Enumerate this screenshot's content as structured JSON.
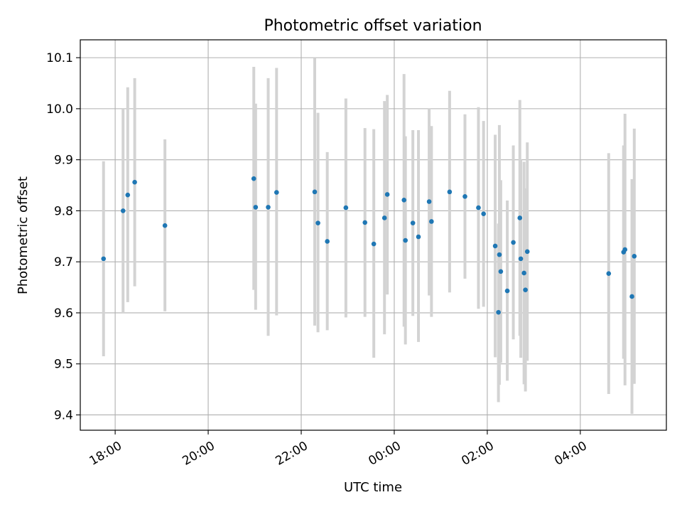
{
  "chart_data": {
    "type": "scatter",
    "title": "Photometric offset variation",
    "xlabel": "UTC time",
    "ylabel": "Photometric offset",
    "x_unit": "hours since 00:00 UTC",
    "xlim": [
      -6.75,
      5.85
    ],
    "ylim": [
      9.37,
      10.135
    ],
    "grid": true,
    "x_ticks": [
      {
        "value": -6,
        "label": "18:00"
      },
      {
        "value": -4,
        "label": "20:00"
      },
      {
        "value": -2,
        "label": "22:00"
      },
      {
        "value": 0,
        "label": "00:00"
      },
      {
        "value": 2,
        "label": "02:00"
      },
      {
        "value": 4,
        "label": "04:00"
      }
    ],
    "y_ticks": [
      {
        "value": 9.4,
        "label": "9.4"
      },
      {
        "value": 9.5,
        "label": "9.5"
      },
      {
        "value": 9.6,
        "label": "9.6"
      },
      {
        "value": 9.7,
        "label": "9.7"
      },
      {
        "value": 9.8,
        "label": "9.8"
      },
      {
        "value": 9.9,
        "label": "9.9"
      },
      {
        "value": 10.0,
        "label": "10.0"
      },
      {
        "value": 10.1,
        "label": "10.1"
      }
    ],
    "colors": {
      "point": "#1f77b4",
      "errorbar": "#d3d3d3",
      "grid": "#b0b0b0"
    },
    "points": [
      {
        "x": -6.25,
        "y": 9.706,
        "lo": 9.515,
        "hi": 9.897
      },
      {
        "x": -5.83,
        "y": 9.8,
        "lo": 9.6,
        "hi": 10.0
      },
      {
        "x": -5.73,
        "y": 9.831,
        "lo": 9.621,
        "hi": 10.042
      },
      {
        "x": -5.58,
        "y": 9.856,
        "lo": 9.652,
        "hi": 10.06
      },
      {
        "x": -4.93,
        "y": 9.771,
        "lo": 9.603,
        "hi": 9.94
      },
      {
        "x": -3.02,
        "y": 9.863,
        "lo": 9.645,
        "hi": 10.082
      },
      {
        "x": -2.98,
        "y": 9.807,
        "lo": 9.606,
        "hi": 10.01
      },
      {
        "x": -2.71,
        "y": 9.807,
        "lo": 9.555,
        "hi": 10.06
      },
      {
        "x": -2.53,
        "y": 9.836,
        "lo": 9.595,
        "hi": 10.08
      },
      {
        "x": -1.71,
        "y": 9.837,
        "lo": 9.575,
        "hi": 10.1
      },
      {
        "x": -1.64,
        "y": 9.776,
        "lo": 9.562,
        "hi": 9.992
      },
      {
        "x": -1.44,
        "y": 9.74,
        "lo": 9.566,
        "hi": 9.915
      },
      {
        "x": -1.04,
        "y": 9.806,
        "lo": 9.591,
        "hi": 10.02
      },
      {
        "x": -0.63,
        "y": 9.777,
        "lo": 9.592,
        "hi": 9.962
      },
      {
        "x": -0.44,
        "y": 9.735,
        "lo": 9.512,
        "hi": 9.96
      },
      {
        "x": -0.21,
        "y": 9.786,
        "lo": 9.558,
        "hi": 10.015
      },
      {
        "x": -0.15,
        "y": 9.832,
        "lo": 9.636,
        "hi": 10.027
      },
      {
        "x": 0.21,
        "y": 9.821,
        "lo": 9.573,
        "hi": 10.068
      },
      {
        "x": 0.24,
        "y": 9.742,
        "lo": 9.538,
        "hi": 9.946
      },
      {
        "x": 0.4,
        "y": 9.776,
        "lo": 9.594,
        "hi": 9.958
      },
      {
        "x": 0.52,
        "y": 9.749,
        "lo": 9.543,
        "hi": 9.958
      },
      {
        "x": 0.75,
        "y": 9.818,
        "lo": 9.634,
        "hi": 10.001
      },
      {
        "x": 0.8,
        "y": 9.779,
        "lo": 9.592,
        "hi": 9.966
      },
      {
        "x": 1.19,
        "y": 9.837,
        "lo": 9.64,
        "hi": 10.035
      },
      {
        "x": 1.52,
        "y": 9.828,
        "lo": 9.667,
        "hi": 9.989
      },
      {
        "x": 1.81,
        "y": 9.806,
        "lo": 9.608,
        "hi": 10.003
      },
      {
        "x": 1.92,
        "y": 9.794,
        "lo": 9.612,
        "hi": 9.976
      },
      {
        "x": 2.17,
        "y": 9.731,
        "lo": 9.513,
        "hi": 9.949
      },
      {
        "x": 2.24,
        "y": 9.601,
        "lo": 9.425,
        "hi": 9.775
      },
      {
        "x": 2.26,
        "y": 9.714,
        "lo": 9.459,
        "hi": 9.968
      },
      {
        "x": 2.29,
        "y": 9.681,
        "lo": 9.502,
        "hi": 9.86
      },
      {
        "x": 2.43,
        "y": 9.643,
        "lo": 9.467,
        "hi": 9.82
      },
      {
        "x": 2.56,
        "y": 9.738,
        "lo": 9.548,
        "hi": 9.928
      },
      {
        "x": 2.7,
        "y": 9.786,
        "lo": 9.555,
        "hi": 10.017
      },
      {
        "x": 2.72,
        "y": 9.706,
        "lo": 9.512,
        "hi": 9.9
      },
      {
        "x": 2.79,
        "y": 9.678,
        "lo": 9.46,
        "hi": 9.896
      },
      {
        "x": 2.82,
        "y": 9.645,
        "lo": 9.446,
        "hi": 9.844
      },
      {
        "x": 2.86,
        "y": 9.72,
        "lo": 9.506,
        "hi": 9.934
      },
      {
        "x": 4.61,
        "y": 9.677,
        "lo": 9.441,
        "hi": 9.913
      },
      {
        "x": 4.93,
        "y": 9.719,
        "lo": 9.51,
        "hi": 9.928
      },
      {
        "x": 4.96,
        "y": 9.724,
        "lo": 9.458,
        "hi": 9.99
      },
      {
        "x": 5.11,
        "y": 9.632,
        "lo": 9.402,
        "hi": 9.862
      },
      {
        "x": 5.16,
        "y": 9.711,
        "lo": 9.461,
        "hi": 9.961
      }
    ]
  }
}
